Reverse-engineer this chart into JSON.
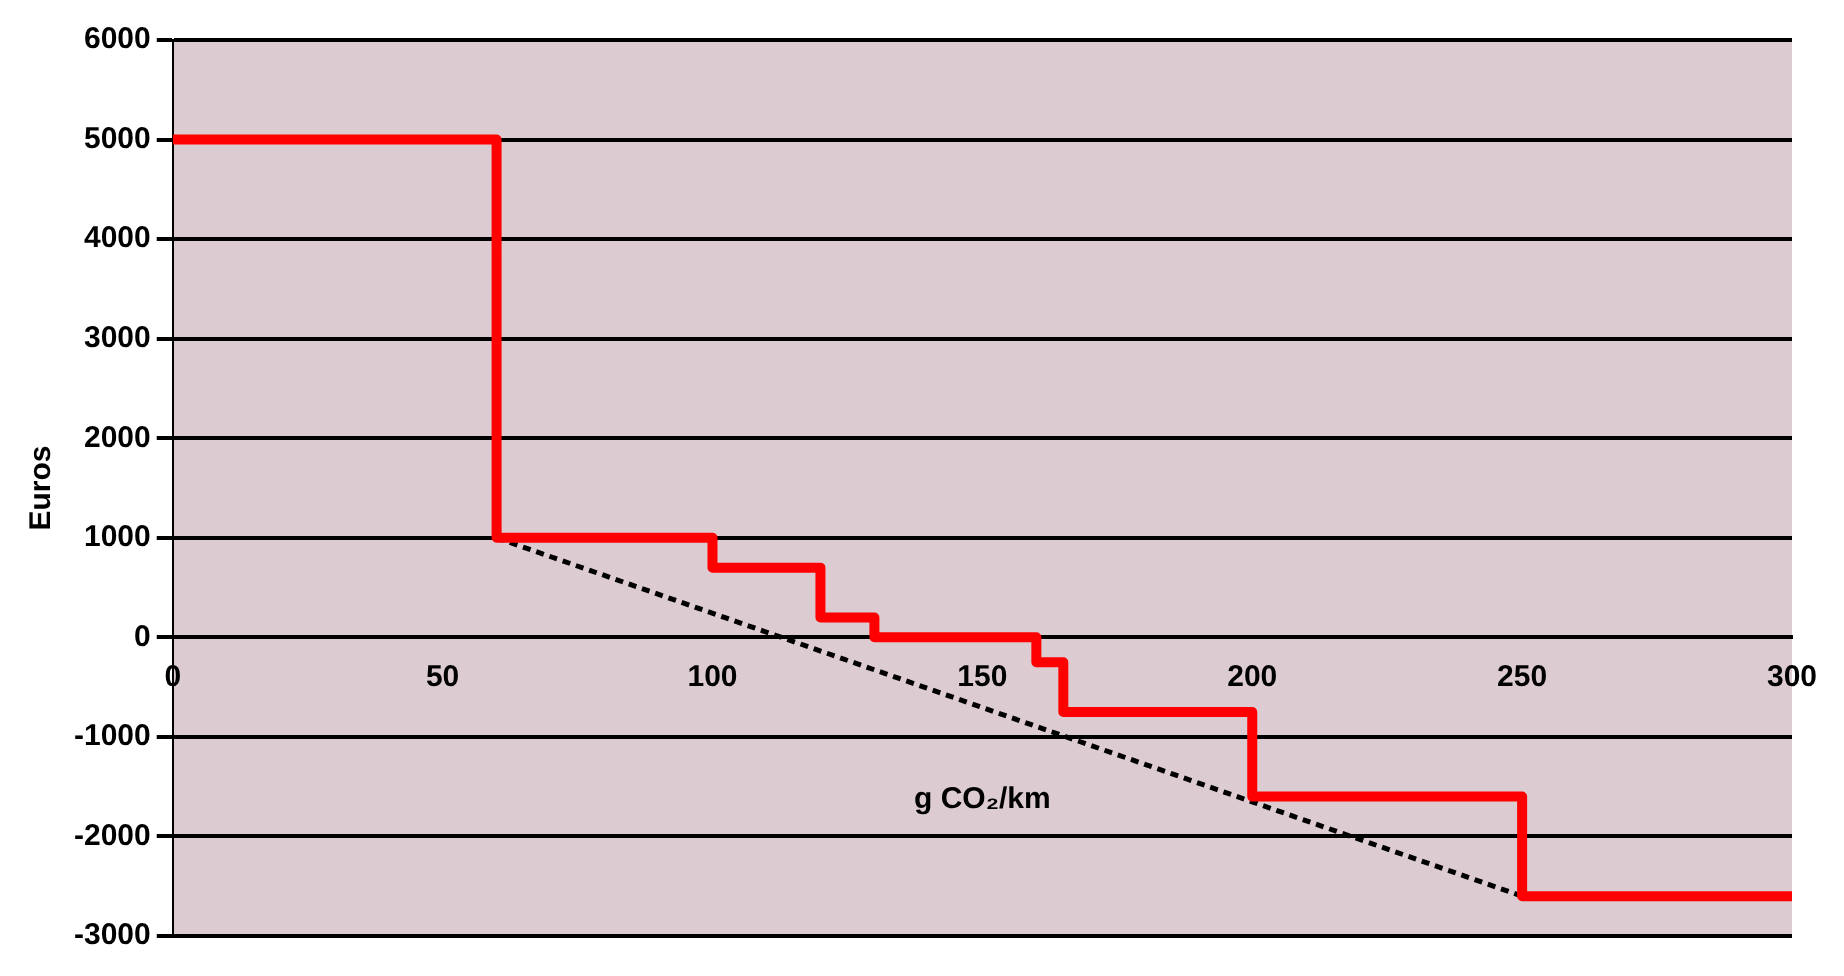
{
  "chart_data": {
    "type": "step",
    "xlabel": "g CO₂/km",
    "ylabel": "Euros",
    "xlim": [
      0,
      300
    ],
    "xticks": [
      0,
      50,
      100,
      150,
      200,
      250,
      300
    ],
    "ylim": [
      -3000,
      6000
    ],
    "yticks": [
      -3000,
      -2000,
      -1000,
      0,
      1000,
      2000,
      3000,
      4000,
      5000,
      6000
    ],
    "grid": "y",
    "legend": false,
    "series": [
      {
        "type": "step",
        "color": "#ff0000",
        "x": [
          0,
          60,
          100,
          120,
          130,
          160,
          165,
          200,
          250,
          300
        ],
        "values": [
          5000,
          1000,
          700,
          200,
          0,
          -250,
          -750,
          -1600,
          -2600,
          -2600
        ],
        "line_style": "solid"
      },
      {
        "type": "line",
        "color": "#000000",
        "x": [
          60,
          250
        ],
        "values": [
          1000,
          -2600
        ],
        "line_style": "dotted"
      }
    ]
  }
}
